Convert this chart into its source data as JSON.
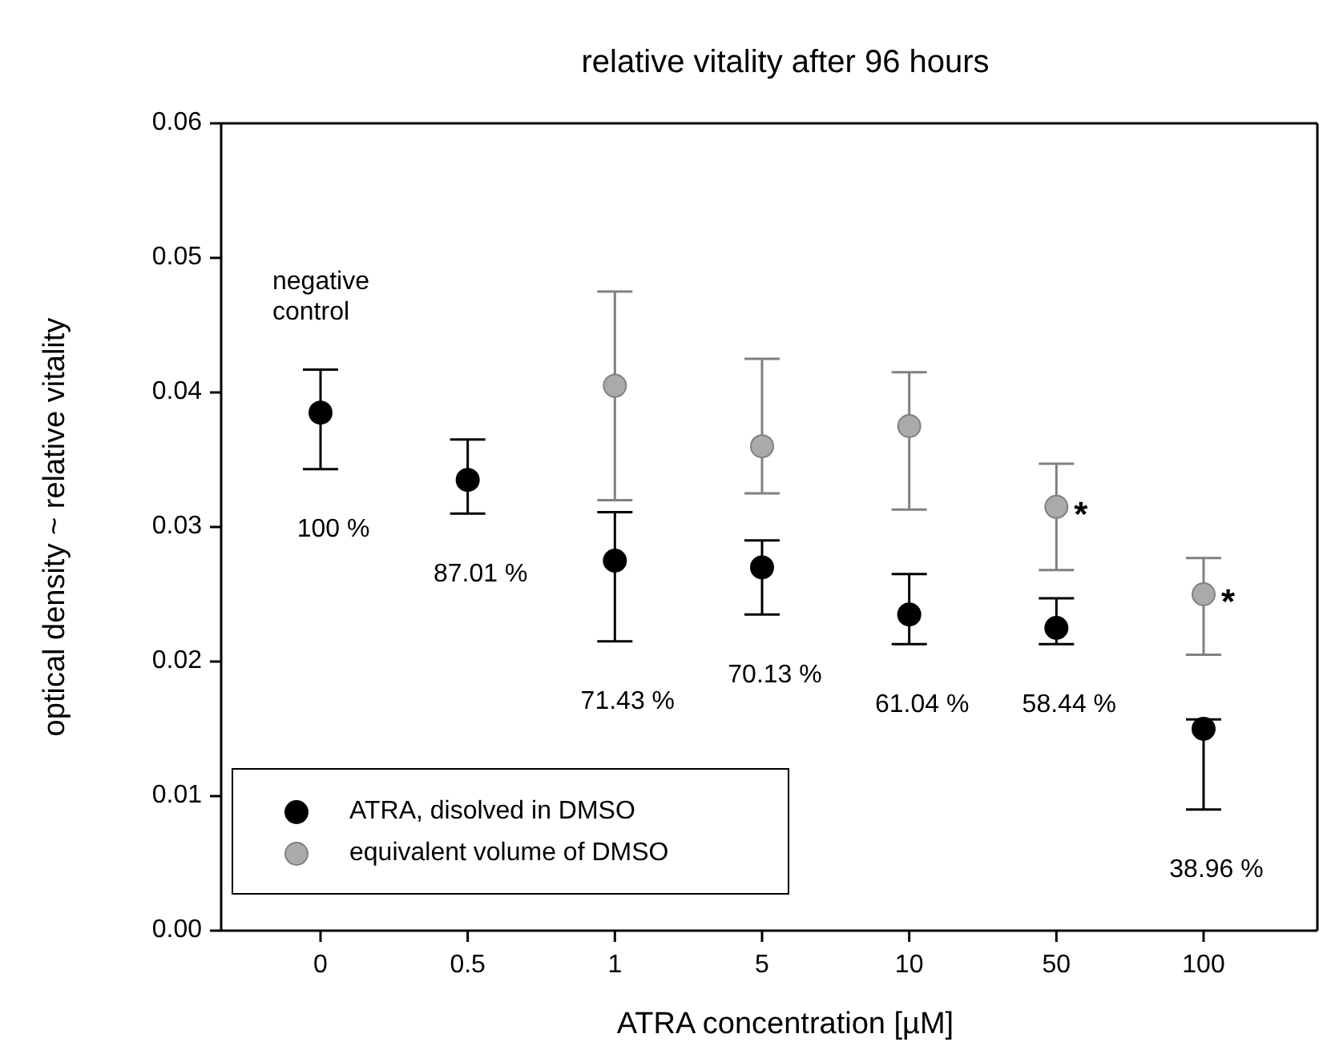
{
  "chart_data": {
    "type": "scatter",
    "title": "relative vitality after 96 hours",
    "xlabel": "ATRA concentration [µM]",
    "ylabel": "optical density ~ relative vitality",
    "categories": [
      "0",
      "0.5",
      "1",
      "5",
      "10",
      "50",
      "100"
    ],
    "series": [
      {
        "name": "ATRA, disolved in DMSO",
        "color": "#000000",
        "values": [
          0.0385,
          0.0335,
          0.0275,
          0.027,
          0.0235,
          0.0225,
          0.015
        ],
        "errors": [
          [
            0.0343,
            0.0417
          ],
          [
            0.031,
            0.0365
          ],
          [
            0.0215,
            0.0311
          ],
          [
            0.0235,
            0.029
          ],
          [
            0.0213,
            0.0265
          ],
          [
            0.0213,
            0.0247
          ],
          [
            0.009,
            0.0157
          ]
        ]
      },
      {
        "name": "equivalent volume of DMSO",
        "color": "#aaaaaa",
        "values": [
          null,
          null,
          0.0405,
          0.036,
          0.0375,
          0.0315,
          0.025
        ],
        "errors": [
          null,
          null,
          [
            0.032,
            0.0475
          ],
          [
            0.0325,
            0.0425
          ],
          [
            0.0313,
            0.0415
          ],
          [
            0.0268,
            0.0347
          ],
          [
            0.0205,
            0.0277
          ]
        ]
      }
    ],
    "ylim": [
      0,
      0.06
    ],
    "yticks": [
      {
        "value": 0,
        "label": "0.00"
      },
      {
        "value": 0.01,
        "label": "0.01"
      },
      {
        "value": 0.02,
        "label": "0.02"
      },
      {
        "value": 0.03,
        "label": "0.03"
      },
      {
        "value": 0.04,
        "label": "0.04"
      },
      {
        "value": 0.05,
        "label": "0.05"
      },
      {
        "value": 0.06,
        "label": "0.06"
      }
    ],
    "grid": false,
    "legend": "bottom left",
    "marker": "circle",
    "annotations": [
      "negative control",
      "100 %",
      "87.01 %",
      "71.43 %",
      "70.13 %",
      "61.04 %",
      "58.44 %",
      "38.96 %",
      {
        "text": "*",
        "x": "50",
        "y": 0.0315
      },
      {
        "text": "*",
        "x": "100",
        "y": 0.025
      }
    ]
  }
}
